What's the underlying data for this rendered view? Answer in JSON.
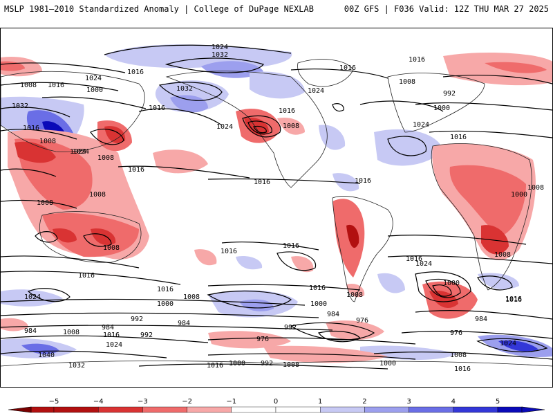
{
  "header": {
    "left": "MSLP 1981–2010 Standardized Anomaly | College of DuPage NEXLAB",
    "right": "00Z GFS | F036 Valid: 12Z THU MAR 27 2025"
  },
  "colorbar": {
    "ticks": [
      "−5",
      "−4",
      "−3",
      "−2",
      "−1",
      "0",
      "1",
      "2",
      "3",
      "4",
      "5"
    ],
    "colors": [
      "#7a0000",
      "#b21010",
      "#d93333",
      "#ef6b6b",
      "#f7a8a8",
      "#ffffff",
      "#c7c9f4",
      "#9c9fee",
      "#6a6ee6",
      "#3337d8",
      "#0a0ab8"
    ]
  },
  "isobar_labels": [
    "1024",
    "1032",
    "1016",
    "1024",
    "1008",
    "1016",
    "1000",
    "1024",
    "1032",
    "1016",
    "1016",
    "1032",
    "1024",
    "1008",
    "1024",
    "992",
    "1000",
    "1016",
    "1008",
    "1016",
    "1024",
    "1016",
    "1008",
    "1024",
    "1008",
    "1016",
    "1016",
    "1016",
    "1008",
    "1008",
    "1008",
    "1000",
    "1008",
    "1016",
    "1016",
    "1016",
    "1016",
    "1016",
    "1008",
    "1000",
    "1008",
    "1024",
    "992",
    "1000",
    "992",
    "1016",
    "1024",
    "1016",
    "1000",
    "1016",
    "984",
    "984",
    "976",
    "1016",
    "1008",
    "984",
    "1008",
    "984",
    "992",
    "976",
    "984",
    "1040",
    "1032",
    "1024",
    "976",
    "1016",
    "1016",
    "1000",
    "1008",
    "992",
    "1000",
    "1016",
    "1024",
    "1008"
  ]
}
